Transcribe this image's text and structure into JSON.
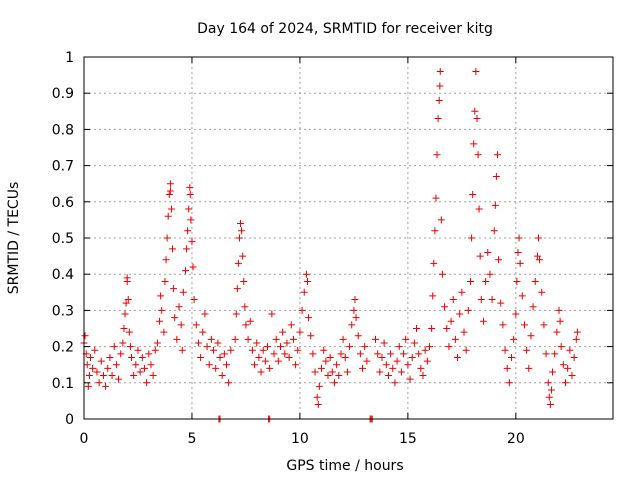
{
  "chart_data": {
    "type": "scatter",
    "title": "Day 164 of 2024, SRMTID for receiver kitg",
    "xlabel": "GPS time / hours",
    "ylabel": "SRMTID / TECUs",
    "xlim": [
      0,
      24.5
    ],
    "ylim": [
      0,
      1
    ],
    "x_ticks": [
      "0",
      "5",
      "10",
      "15",
      "20"
    ],
    "x_tick_values": [
      0,
      5,
      10,
      15,
      20
    ],
    "y_ticks": [
      "0",
      "0.1",
      "0.2",
      "0.3",
      "0.4",
      "0.5",
      "0.6",
      "0.7",
      "0.8",
      "0.9",
      "1"
    ],
    "y_tick_values": [
      0,
      0.1,
      0.2,
      0.3,
      0.4,
      0.5,
      0.6,
      0.7,
      0.8,
      0.9,
      1
    ],
    "grid": true,
    "marker": "+",
    "series_color": "#ee0000",
    "series": [
      {
        "name": "SRMTID",
        "points": [
          [
            0.0,
            0.21
          ],
          [
            0.05,
            0.23
          ],
          [
            0.1,
            0.18
          ],
          [
            0.15,
            0.15
          ],
          [
            0.2,
            0.09
          ],
          [
            0.25,
            0.12
          ],
          [
            0.3,
            0.17
          ],
          [
            0.4,
            0.14
          ],
          [
            0.5,
            0.19
          ],
          [
            0.6,
            0.13
          ],
          [
            0.7,
            0.1
          ],
          [
            0.8,
            0.16
          ],
          [
            0.9,
            0.12
          ],
          [
            1.0,
            0.09
          ],
          [
            1.1,
            0.14
          ],
          [
            1.2,
            0.17
          ],
          [
            1.3,
            0.12
          ],
          [
            1.4,
            0.2
          ],
          [
            1.5,
            0.15
          ],
          [
            1.6,
            0.11
          ],
          [
            1.7,
            0.18
          ],
          [
            1.8,
            0.21
          ],
          [
            1.85,
            0.25
          ],
          [
            1.9,
            0.29
          ],
          [
            1.95,
            0.32
          ],
          [
            2.0,
            0.39
          ],
          [
            2.0,
            0.38
          ],
          [
            2.05,
            0.33
          ],
          [
            2.1,
            0.24
          ],
          [
            2.15,
            0.2
          ],
          [
            2.2,
            0.17
          ],
          [
            2.3,
            0.12
          ],
          [
            2.4,
            0.15
          ],
          [
            2.5,
            0.19
          ],
          [
            2.6,
            0.13
          ],
          [
            2.7,
            0.17
          ],
          [
            2.8,
            0.14
          ],
          [
            2.9,
            0.1
          ],
          [
            3.0,
            0.18
          ],
          [
            3.1,
            0.15
          ],
          [
            3.2,
            0.12
          ],
          [
            3.3,
            0.19
          ],
          [
            3.4,
            0.21
          ],
          [
            3.5,
            0.27
          ],
          [
            3.55,
            0.34
          ],
          [
            3.6,
            0.3
          ],
          [
            3.7,
            0.24
          ],
          [
            3.75,
            0.38
          ],
          [
            3.8,
            0.44
          ],
          [
            3.85,
            0.5
          ],
          [
            3.9,
            0.56
          ],
          [
            3.95,
            0.62
          ],
          [
            4.0,
            0.65
          ],
          [
            4.0,
            0.63
          ],
          [
            4.05,
            0.58
          ],
          [
            4.1,
            0.47
          ],
          [
            4.15,
            0.36
          ],
          [
            4.2,
            0.28
          ],
          [
            4.3,
            0.22
          ],
          [
            4.4,
            0.31
          ],
          [
            4.5,
            0.26
          ],
          [
            4.55,
            0.19
          ],
          [
            4.6,
            0.35
          ],
          [
            4.7,
            0.41
          ],
          [
            4.75,
            0.47
          ],
          [
            4.8,
            0.52
          ],
          [
            4.85,
            0.58
          ],
          [
            4.9,
            0.64
          ],
          [
            4.92,
            0.62
          ],
          [
            4.95,
            0.55
          ],
          [
            5.0,
            0.49
          ],
          [
            5.05,
            0.42
          ],
          [
            5.1,
            0.33
          ],
          [
            5.2,
            0.26
          ],
          [
            5.3,
            0.21
          ],
          [
            5.4,
            0.17
          ],
          [
            5.5,
            0.24
          ],
          [
            5.6,
            0.29
          ],
          [
            5.7,
            0.2
          ],
          [
            5.8,
            0.15
          ],
          [
            5.9,
            0.22
          ],
          [
            6.0,
            0.19
          ],
          [
            6.1,
            0.14
          ],
          [
            6.2,
            0.21
          ],
          [
            6.3,
            0.17
          ],
          [
            6.4,
            0.12
          ],
          [
            6.5,
            0.18
          ],
          [
            6.6,
            0.15
          ],
          [
            6.7,
            0.1
          ],
          [
            6.8,
            0.19
          ],
          [
            7.0,
            0.22
          ],
          [
            7.05,
            0.29
          ],
          [
            7.1,
            0.36
          ],
          [
            7.15,
            0.43
          ],
          [
            7.2,
            0.5
          ],
          [
            7.25,
            0.54
          ],
          [
            7.3,
            0.52
          ],
          [
            7.35,
            0.45
          ],
          [
            7.4,
            0.38
          ],
          [
            7.45,
            0.31
          ],
          [
            7.5,
            0.26
          ],
          [
            7.6,
            0.22
          ],
          [
            7.7,
            0.27
          ],
          [
            7.8,
            0.19
          ],
          [
            7.9,
            0.15
          ],
          [
            8.0,
            0.21
          ],
          [
            8.1,
            0.17
          ],
          [
            8.2,
            0.13
          ],
          [
            8.3,
            0.19
          ],
          [
            8.4,
            0.16
          ],
          [
            8.5,
            0.2
          ],
          [
            8.6,
            0.14
          ],
          [
            8.7,
            0.29
          ],
          [
            8.8,
            0.18
          ],
          [
            8.9,
            0.22
          ],
          [
            9.0,
            0.16
          ],
          [
            9.1,
            0.2
          ],
          [
            9.2,
            0.24
          ],
          [
            9.3,
            0.18
          ],
          [
            9.4,
            0.21
          ],
          [
            9.5,
            0.17
          ],
          [
            9.6,
            0.26
          ],
          [
            9.7,
            0.22
          ],
          [
            9.8,
            0.15
          ],
          [
            9.9,
            0.19
          ],
          [
            10.0,
            0.24
          ],
          [
            10.1,
            0.3
          ],
          [
            10.2,
            0.35
          ],
          [
            10.3,
            0.4
          ],
          [
            10.35,
            0.38
          ],
          [
            10.4,
            0.28
          ],
          [
            10.5,
            0.23
          ],
          [
            10.6,
            0.18
          ],
          [
            10.7,
            0.13
          ],
          [
            10.8,
            0.06
          ],
          [
            10.85,
            0.04
          ],
          [
            10.9,
            0.09
          ],
          [
            11.0,
            0.14
          ],
          [
            11.1,
            0.19
          ],
          [
            11.2,
            0.16
          ],
          [
            11.3,
            0.12
          ],
          [
            11.4,
            0.17
          ],
          [
            11.5,
            0.13
          ],
          [
            11.6,
            0.1
          ],
          [
            11.7,
            0.15
          ],
          [
            11.8,
            0.12
          ],
          [
            11.9,
            0.18
          ],
          [
            12.0,
            0.22
          ],
          [
            12.1,
            0.17
          ],
          [
            12.2,
            0.13
          ],
          [
            12.3,
            0.2
          ],
          [
            12.4,
            0.26
          ],
          [
            12.5,
            0.3
          ],
          [
            12.55,
            0.33
          ],
          [
            12.6,
            0.28
          ],
          [
            12.7,
            0.23
          ],
          [
            12.8,
            0.18
          ],
          [
            12.9,
            0.14
          ],
          [
            13.0,
            0.2
          ],
          [
            13.1,
            0.16
          ],
          [
            13.5,
            0.22
          ],
          [
            13.6,
            0.18
          ],
          [
            13.7,
            0.13
          ],
          [
            13.8,
            0.17
          ],
          [
            13.9,
            0.21
          ],
          [
            14.0,
            0.15
          ],
          [
            14.1,
            0.12
          ],
          [
            14.2,
            0.18
          ],
          [
            14.3,
            0.14
          ],
          [
            14.4,
            0.1
          ],
          [
            14.5,
            0.16
          ],
          [
            14.6,
            0.2
          ],
          [
            14.7,
            0.13
          ],
          [
            14.8,
            0.18
          ],
          [
            14.9,
            0.22
          ],
          [
            15.0,
            0.15
          ],
          [
            15.1,
            0.11
          ],
          [
            15.2,
            0.17
          ],
          [
            15.3,
            0.21
          ],
          [
            15.4,
            0.25
          ],
          [
            15.5,
            0.18
          ],
          [
            15.6,
            0.14
          ],
          [
            15.7,
            0.12
          ],
          [
            15.8,
            0.19
          ],
          [
            15.9,
            0.16
          ],
          [
            16.0,
            0.2
          ],
          [
            16.1,
            0.25
          ],
          [
            16.15,
            0.34
          ],
          [
            16.2,
            0.43
          ],
          [
            16.25,
            0.52
          ],
          [
            16.3,
            0.61
          ],
          [
            16.35,
            0.73
          ],
          [
            16.4,
            0.83
          ],
          [
            16.45,
            0.88
          ],
          [
            16.48,
            0.92
          ],
          [
            16.5,
            0.96
          ],
          [
            16.55,
            0.55
          ],
          [
            16.6,
            0.4
          ],
          [
            16.7,
            0.31
          ],
          [
            16.8,
            0.25
          ],
          [
            16.9,
            0.2
          ],
          [
            17.0,
            0.27
          ],
          [
            17.1,
            0.33
          ],
          [
            17.2,
            0.22
          ],
          [
            17.3,
            0.17
          ],
          [
            17.4,
            0.29
          ],
          [
            17.5,
            0.35
          ],
          [
            17.6,
            0.24
          ],
          [
            17.7,
            0.19
          ],
          [
            17.8,
            0.3
          ],
          [
            17.9,
            0.38
          ],
          [
            17.95,
            0.5
          ],
          [
            18.0,
            0.62
          ],
          [
            18.05,
            0.76
          ],
          [
            18.1,
            0.85
          ],
          [
            18.15,
            0.96
          ],
          [
            18.2,
            0.83
          ],
          [
            18.25,
            0.73
          ],
          [
            18.3,
            0.58
          ],
          [
            18.35,
            0.45
          ],
          [
            18.4,
            0.33
          ],
          [
            18.5,
            0.27
          ],
          [
            18.6,
            0.38
          ],
          [
            18.7,
            0.46
          ],
          [
            18.8,
            0.4
          ],
          [
            18.9,
            0.33
          ],
          [
            19.0,
            0.52
          ],
          [
            19.05,
            0.59
          ],
          [
            19.1,
            0.67
          ],
          [
            19.15,
            0.73
          ],
          [
            19.2,
            0.44
          ],
          [
            19.3,
            0.32
          ],
          [
            19.4,
            0.26
          ],
          [
            19.5,
            0.19
          ],
          [
            19.6,
            0.14
          ],
          [
            19.7,
            0.1
          ],
          [
            19.8,
            0.17
          ],
          [
            19.9,
            0.22
          ],
          [
            20.0,
            0.29
          ],
          [
            20.05,
            0.38
          ],
          [
            20.1,
            0.46
          ],
          [
            20.15,
            0.5
          ],
          [
            20.2,
            0.43
          ],
          [
            20.3,
            0.34
          ],
          [
            20.4,
            0.26
          ],
          [
            20.5,
            0.19
          ],
          [
            20.6,
            0.14
          ],
          [
            20.7,
            0.23
          ],
          [
            20.8,
            0.31
          ],
          [
            20.9,
            0.38
          ],
          [
            21.0,
            0.45
          ],
          [
            21.05,
            0.5
          ],
          [
            21.1,
            0.44
          ],
          [
            21.2,
            0.35
          ],
          [
            21.3,
            0.26
          ],
          [
            21.4,
            0.18
          ],
          [
            21.5,
            0.1
          ],
          [
            21.55,
            0.06
          ],
          [
            21.6,
            0.04
          ],
          [
            21.65,
            0.08
          ],
          [
            21.7,
            0.13
          ],
          [
            21.8,
            0.18
          ],
          [
            21.9,
            0.24
          ],
          [
            22.0,
            0.3
          ],
          [
            22.05,
            0.27
          ],
          [
            22.1,
            0.2
          ],
          [
            22.2,
            0.15
          ],
          [
            22.3,
            0.1
          ],
          [
            22.4,
            0.14
          ],
          [
            22.5,
            0.19
          ],
          [
            22.6,
            0.12
          ],
          [
            22.7,
            0.17
          ],
          [
            22.8,
            0.22
          ],
          [
            22.85,
            0.24
          ],
          [
            6.25,
            0.0
          ],
          [
            6.3,
            0.0
          ],
          [
            8.55,
            0.0
          ],
          [
            8.6,
            0.0
          ],
          [
            13.25,
            0.0
          ],
          [
            13.3,
            0.0
          ],
          [
            13.35,
            0.0
          ]
        ]
      }
    ]
  }
}
